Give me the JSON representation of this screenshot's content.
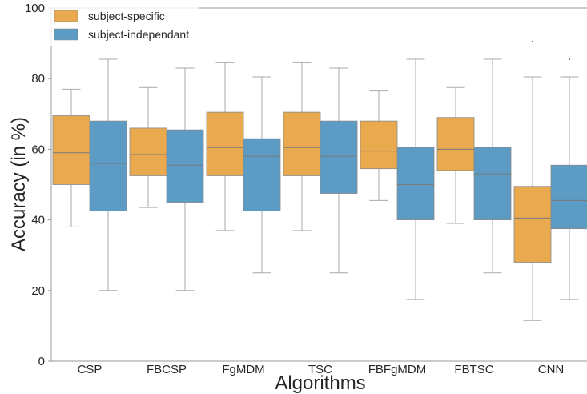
{
  "chart_data": {
    "type": "box",
    "categories": [
      "CSP",
      "FBCSP",
      "FgMDM",
      "TSC",
      "FBFgMDM",
      "FBTSC",
      "CNN"
    ],
    "xlabel": "Algorithms",
    "ylabel": "Accuracy (in %)",
    "ylim": [
      0,
      100
    ],
    "yticks": [
      0,
      20,
      40,
      60,
      80,
      100
    ],
    "grid": false,
    "legend_position": "top-left",
    "series": [
      {
        "name": "subject-specific",
        "color": "#e8a94f",
        "boxes": [
          {
            "min": 38,
            "q1": 50,
            "median": 59,
            "q3": 69.5,
            "max": 77
          },
          {
            "min": 43.5,
            "q1": 52.5,
            "median": 58.5,
            "q3": 66,
            "max": 77.5
          },
          {
            "min": 37,
            "q1": 52.5,
            "median": 60.5,
            "q3": 70.5,
            "max": 84.5
          },
          {
            "min": 37,
            "q1": 52.5,
            "median": 60.5,
            "q3": 70.5,
            "max": 84.5
          },
          {
            "min": 45.5,
            "q1": 54.5,
            "median": 59.5,
            "q3": 68,
            "max": 76.5
          },
          {
            "min": 39,
            "q1": 54,
            "median": 60,
            "q3": 69,
            "max": 77.5
          },
          {
            "min": 11.5,
            "q1": 28,
            "median": 40.5,
            "q3": 49.5,
            "max": 80.5
          }
        ]
      },
      {
        "name": "subject-independant",
        "color": "#5b9bc4",
        "boxes": [
          {
            "min": 20,
            "q1": 42.5,
            "median": 56,
            "q3": 68,
            "max": 85.5
          },
          {
            "min": 20,
            "q1": 45,
            "median": 55.5,
            "q3": 65.5,
            "max": 83
          },
          {
            "min": 25,
            "q1": 42.5,
            "median": 58,
            "q3": 63,
            "max": 80.5
          },
          {
            "min": 25,
            "q1": 47.5,
            "median": 58,
            "q3": 68,
            "max": 83
          },
          {
            "min": 17.5,
            "q1": 40,
            "median": 50,
            "q3": 60.5,
            "max": 85.5
          },
          {
            "min": 25,
            "q1": 40,
            "median": 53,
            "q3": 60.5,
            "max": 85.5
          },
          {
            "min": 17.5,
            "q1": 37.5,
            "median": 45.5,
            "q3": 55.5,
            "max": 80.5
          }
        ]
      }
    ],
    "outliers": [
      {
        "category": "CNN",
        "series": "subject-specific",
        "value": 90.5
      },
      {
        "category": "CNN",
        "series": "subject-independant",
        "value": 85.5
      }
    ]
  }
}
